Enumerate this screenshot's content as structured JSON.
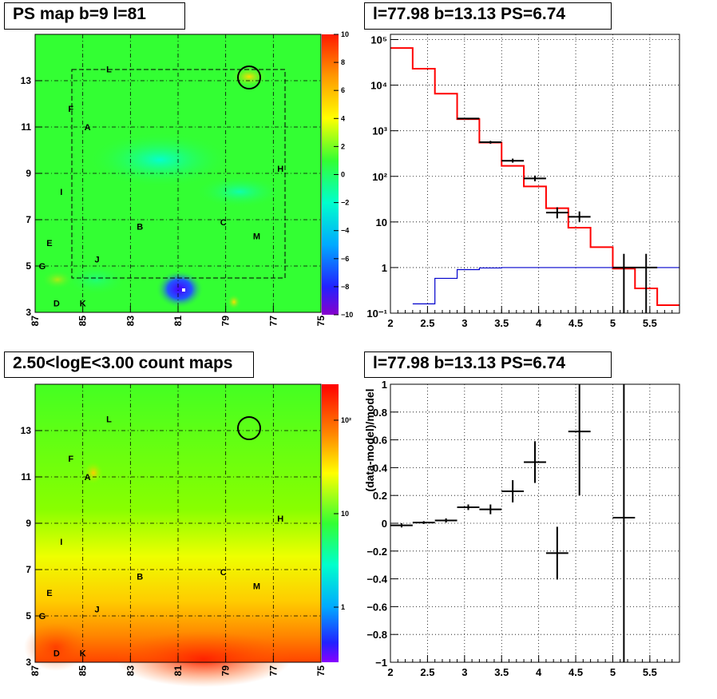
{
  "colors": {
    "frame": "#000000",
    "grid": "#000000",
    "model": "#ff0000",
    "exposure": "#0000cc",
    "data": "#000000"
  },
  "panel_titles": {
    "tl": "PS map b=9 l=81",
    "tr": "l=77.98 b=13.13 PS=6.74",
    "bl": "2.50<logE<3.00 count maps",
    "br": "l=77.98 b=13.13 PS=6.74"
  },
  "chart_data": [
    {
      "type": "heatmap",
      "title": "PS map b=9 l=81",
      "x_ticks": [
        "87",
        "85",
        "83",
        "81",
        "79",
        "77",
        "75"
      ],
      "y_ticks": [
        "3",
        "5",
        "7",
        "9",
        "11",
        "13"
      ],
      "xlim": [
        87,
        75
      ],
      "ylim": [
        3,
        15
      ],
      "colorbar_ticks": [
        "10",
        "8",
        "6",
        "4",
        "2",
        "0",
        "−2",
        "−4",
        "−6",
        "−8",
        "−10"
      ],
      "zlim": [
        -10,
        10
      ],
      "source_labels": [
        {
          "label": "L",
          "l": 83.9,
          "b": 13.5
        },
        {
          "label": "F",
          "l": 85.5,
          "b": 11.8
        },
        {
          "label": "A",
          "l": 84.8,
          "b": 11.0
        },
        {
          "label": "H",
          "l": 76.7,
          "b": 9.2
        },
        {
          "label": "I",
          "l": 85.9,
          "b": 8.2
        },
        {
          "label": "C",
          "l": 79.1,
          "b": 6.9
        },
        {
          "label": "B",
          "l": 82.6,
          "b": 6.7
        },
        {
          "label": "M",
          "l": 77.7,
          "b": 6.3
        },
        {
          "label": "E",
          "l": 86.4,
          "b": 6.0
        },
        {
          "label": "J",
          "l": 84.4,
          "b": 5.3
        },
        {
          "label": "G",
          "l": 86.7,
          "b": 5.0
        },
        {
          "label": "D",
          "l": 86.1,
          "b": 3.4
        },
        {
          "label": "K",
          "l": 85.0,
          "b": 3.4
        }
      ],
      "marked_source": {
        "l": 77.98,
        "b": 13.13
      },
      "grid": true
    },
    {
      "type": "line",
      "title": "l=77.98 b=13.13 PS=6.74",
      "x_ticks": [
        "2",
        "2.5",
        "3",
        "3.5",
        "4",
        "4.5",
        "5",
        "5.5"
      ],
      "y_ticks": [
        "10⁻¹",
        "1",
        "10",
        "10²",
        "10³",
        "10⁴",
        "10⁵"
      ],
      "xlim": [
        2,
        5.9
      ],
      "ylim": [
        0.1,
        130000
      ],
      "yscale": "log",
      "grid": true,
      "series": [
        {
          "type": "step",
          "edges": [
            2,
            2.3,
            2.6,
            2.9,
            3.2,
            3.5,
            3.8,
            4.1,
            4.4,
            4.7,
            5.0,
            5.3,
            5.6,
            5.9
          ],
          "values": [
            65000,
            23000,
            6500,
            1800,
            550,
            170,
            60,
            20,
            7.5,
            2.8,
            0.95,
            0.35,
            0.15
          ]
        },
        {
          "type": "step",
          "edges": [
            2.3,
            2.6,
            2.9,
            3.2,
            3.5,
            3.8,
            4.1,
            4.4,
            4.7,
            5.0,
            5.3,
            5.6,
            5.9
          ],
          "values": [
            0.16,
            0.58,
            0.9,
            0.98,
            1,
            1,
            1,
            1,
            1,
            1,
            1,
            1
          ]
        },
        {
          "type": "errorbar",
          "points": [
            {
              "x": 3.05,
              "y": 1850,
              "xerr": 0.15,
              "ylo": 1780,
              "yhi": 1920
            },
            {
              "x": 3.35,
              "y": 560,
              "xerr": 0.15,
              "ylo": 520,
              "yhi": 600
            },
            {
              "x": 3.65,
              "y": 220,
              "xerr": 0.15,
              "ylo": 200,
              "yhi": 245
            },
            {
              "x": 3.95,
              "y": 90,
              "xerr": 0.15,
              "ylo": 78,
              "yhi": 104
            },
            {
              "x": 4.25,
              "y": 16,
              "xerr": 0.15,
              "ylo": 12,
              "yhi": 21
            },
            {
              "x": 4.55,
              "y": 13,
              "xerr": 0.15,
              "ylo": 10,
              "yhi": 17
            },
            {
              "x": 5.15,
              "y": 1,
              "xerr": 0.15,
              "ylo": 0.1,
              "yhi": 2
            },
            {
              "x": 5.45,
              "y": 1,
              "xerr": 0.15,
              "ylo": 0.1,
              "yhi": 2
            }
          ]
        }
      ]
    },
    {
      "type": "heatmap",
      "title": "2.50<logE<3.00 count maps",
      "x_ticks": [
        "87",
        "85",
        "83",
        "81",
        "79",
        "77",
        "75"
      ],
      "y_ticks": [
        "3",
        "5",
        "7",
        "9",
        "11",
        "13"
      ],
      "xlim": [
        87,
        75
      ],
      "ylim": [
        3,
        15
      ],
      "colorbar_ticks": [
        "10²",
        "10",
        "1"
      ],
      "zlim": [
        0.4,
        300
      ],
      "zscale": "log",
      "source_labels": [
        {
          "label": "L",
          "l": 83.9,
          "b": 13.5
        },
        {
          "label": "F",
          "l": 85.5,
          "b": 11.8
        },
        {
          "label": "A",
          "l": 84.8,
          "b": 11.0
        },
        {
          "label": "H",
          "l": 76.7,
          "b": 9.2
        },
        {
          "label": "I",
          "l": 85.9,
          "b": 8.2
        },
        {
          "label": "C",
          "l": 79.1,
          "b": 6.9
        },
        {
          "label": "B",
          "l": 82.6,
          "b": 6.7
        },
        {
          "label": "M",
          "l": 77.7,
          "b": 6.3
        },
        {
          "label": "E",
          "l": 86.4,
          "b": 6.0
        },
        {
          "label": "J",
          "l": 84.4,
          "b": 5.3
        },
        {
          "label": "G",
          "l": 86.7,
          "b": 5.0
        },
        {
          "label": "D",
          "l": 86.1,
          "b": 3.4
        },
        {
          "label": "K",
          "l": 85.0,
          "b": 3.4
        }
      ],
      "marked_source": {
        "l": 77.98,
        "b": 13.13
      },
      "grid": true
    },
    {
      "type": "scatter",
      "title": "l=77.98 b=13.13 PS=6.74",
      "ylabel": "(data-model)/model",
      "x_ticks": [
        "2",
        "2.5",
        "3",
        "3.5",
        "4",
        "4.5",
        "5",
        "5.5"
      ],
      "y_ticks": [
        "−1",
        "−0.8",
        "−0.6",
        "−0.4",
        "−0.2",
        "0",
        "0.2",
        "0.4",
        "0.6",
        "0.8",
        "1"
      ],
      "xlim": [
        2,
        5.9
      ],
      "ylim": [
        -1,
        1
      ],
      "grid": true,
      "points": [
        {
          "x": 2.15,
          "y": -0.015,
          "xerr": 0.15,
          "yerr": 0.015
        },
        {
          "x": 2.45,
          "y": 0.005,
          "xerr": 0.15,
          "yerr": 0.01
        },
        {
          "x": 2.75,
          "y": 0.02,
          "xerr": 0.15,
          "yerr": 0.015
        },
        {
          "x": 3.05,
          "y": 0.115,
          "xerr": 0.15,
          "yerr": 0.02
        },
        {
          "x": 3.35,
          "y": 0.1,
          "xerr": 0.15,
          "yerr": 0.035
        },
        {
          "x": 3.65,
          "y": 0.23,
          "xerr": 0.15,
          "yerr": 0.08
        },
        {
          "x": 3.95,
          "y": 0.44,
          "xerr": 0.15,
          "yerr": 0.15
        },
        {
          "x": 4.25,
          "y": -0.215,
          "xerr": 0.15,
          "yerr": 0.19
        },
        {
          "x": 4.55,
          "y": 0.66,
          "xerr": 0.15,
          "yerr": 0.46
        },
        {
          "x": 5.15,
          "y": 0.04,
          "xerr": 0.15,
          "yerr": 1.2
        }
      ]
    }
  ]
}
